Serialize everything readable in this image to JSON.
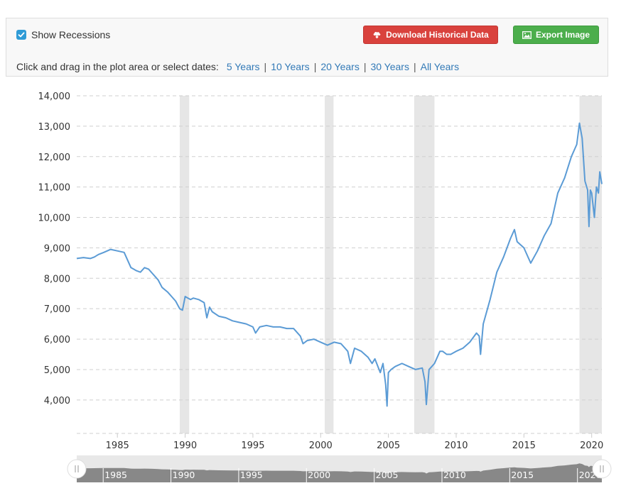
{
  "controls": {
    "show_recessions_label": "Show Recessions",
    "show_recessions_checked": true,
    "download_label": "Download Historical Data",
    "download_icon": "cloud-download-icon",
    "export_label": "Export Image",
    "export_icon": "image-icon",
    "range_prompt": "Click and drag in the plot area or select dates:",
    "range_links": [
      "5 Years",
      "10 Years",
      "20 Years",
      "30 Years",
      "All Years"
    ]
  },
  "colors": {
    "line": "#5b9bd5",
    "recession": "#e6e6e6",
    "download_button": "#d9423d",
    "export_button": "#4cae4c",
    "link": "#337ab7",
    "checkbox": "#2f9bd6"
  },
  "chart_data": {
    "type": "line",
    "title": "",
    "xlabel": "",
    "ylabel": "",
    "xlim": [
      1982.0,
      2020.75
    ],
    "ylim": [
      2900,
      14000
    ],
    "yticks": [
      "14,000",
      "13,000",
      "12,000",
      "11,000",
      "10,000",
      "9,000",
      "8,000",
      "7,000",
      "6,000",
      "5,000",
      "4,000"
    ],
    "ytick_values": [
      14000,
      13000,
      12000,
      11000,
      10000,
      9000,
      8000,
      7000,
      6000,
      5000,
      4000
    ],
    "xticks": [
      "1985",
      "1990",
      "1995",
      "2000",
      "2005",
      "2010",
      "2015",
      "2020"
    ],
    "xtick_values": [
      1985,
      1990,
      1995,
      2000,
      2005,
      2010,
      2015,
      2020
    ],
    "grid": true,
    "recessions": [
      [
        1989.6,
        1990.3
      ],
      [
        2000.3,
        2000.95
      ],
      [
        2006.9,
        2008.4
      ],
      [
        2019.1,
        2020.75
      ]
    ],
    "series": [
      {
        "x": [
          1982.0,
          1982.5,
          1983.0,
          1983.3,
          1983.6,
          1984.0,
          1984.5,
          1985.0,
          1985.5,
          1986.0,
          1986.2,
          1986.4,
          1986.7,
          1987.0,
          1987.3,
          1987.6,
          1988.0,
          1988.3,
          1988.7,
          1989.0,
          1989.3,
          1989.6,
          1989.8,
          1990.0,
          1990.2,
          1990.4,
          1990.6,
          1991.0,
          1991.4,
          1991.6,
          1991.8,
          1992.0,
          1992.5,
          1993.0,
          1993.5,
          1994.0,
          1994.5,
          1995.0,
          1995.2,
          1995.5,
          1996.0,
          1996.5,
          1997.0,
          1997.5,
          1998.0,
          1998.5,
          1998.7,
          1999.0,
          1999.5,
          2000.0,
          2000.5,
          2001.0,
          2001.5,
          2002.0,
          2002.2,
          2002.5,
          2003.0,
          2003.5,
          2003.8,
          2004.0,
          2004.4,
          2004.6,
          2004.8,
          2004.9,
          2005.0,
          2005.2,
          2005.5,
          2006.0,
          2006.5,
          2007.0,
          2007.5,
          2007.7,
          2007.8,
          2008.0,
          2008.2,
          2008.4,
          2008.8,
          2009.0,
          2009.3,
          2009.6,
          2010.0,
          2010.5,
          2011.0,
          2011.5,
          2011.7,
          2011.8,
          2012.0,
          2012.5,
          2013.0,
          2013.5,
          2014.0,
          2014.3,
          2014.5,
          2015.0,
          2015.5,
          2016.0,
          2016.5,
          2017.0,
          2017.5,
          2018.0,
          2018.5,
          2018.9,
          2019.1,
          2019.3,
          2019.5,
          2019.7,
          2019.8,
          2019.9,
          2020.0,
          2020.2,
          2020.35,
          2020.5,
          2020.6,
          2020.75
        ],
        "y": [
          8650,
          8680,
          8650,
          8700,
          8780,
          8850,
          8950,
          8900,
          8850,
          8350,
          8300,
          8250,
          8200,
          8350,
          8300,
          8150,
          7950,
          7700,
          7550,
          7400,
          7250,
          7000,
          6950,
          7400,
          7350,
          7300,
          7350,
          7300,
          7200,
          6700,
          7050,
          6900,
          6750,
          6700,
          6600,
          6550,
          6500,
          6400,
          6200,
          6400,
          6450,
          6400,
          6400,
          6350,
          6350,
          6100,
          5850,
          5950,
          6000,
          5900,
          5800,
          5900,
          5850,
          5600,
          5200,
          5700,
          5600,
          5400,
          5200,
          5350,
          4900,
          5200,
          4500,
          3800,
          4900,
          5000,
          5100,
          5200,
          5100,
          5000,
          5050,
          4600,
          3850,
          5000,
          5100,
          5200,
          5600,
          5600,
          5500,
          5500,
          5600,
          5700,
          5900,
          6200,
          6100,
          5500,
          6500,
          7300,
          8200,
          8700,
          9300,
          9600,
          9200,
          9000,
          8500,
          8900,
          9400,
          9800,
          10800,
          11300,
          12000,
          12400,
          13100,
          12600,
          11200,
          10900,
          9700,
          10900,
          10800,
          10000,
          11000,
          10800,
          11500,
          11100
        ]
      }
    ],
    "navigator_labels": [
      "1985",
      "1990",
      "1995",
      "2000",
      "2005",
      "2010",
      "2015",
      "2020"
    ],
    "navigator_handle_icon": "drag-handle-icon"
  }
}
